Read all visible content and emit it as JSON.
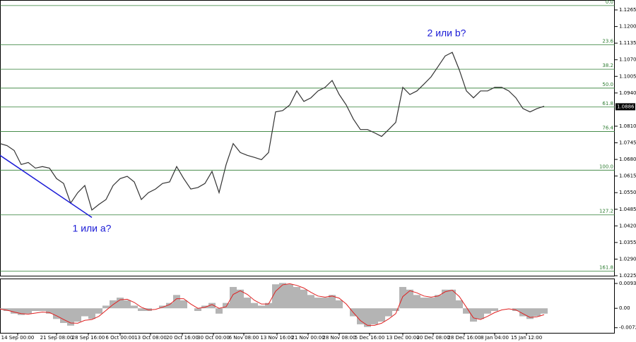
{
  "chart_data": [
    {
      "type": "line",
      "xlim": [
        0,
        87
      ],
      "ylim": [
        1.0225,
        1.1301
      ],
      "yticks": [
        {
          "value": 1.1265,
          "label": "1.1265"
        },
        {
          "value": 1.12,
          "label": "1.1200"
        },
        {
          "value": 1.1135,
          "label": "1.1135"
        },
        {
          "value": 1.107,
          "label": "1.1070"
        },
        {
          "value": 1.1005,
          "label": "1.1005"
        },
        {
          "value": 1.094,
          "label": "1.0940"
        },
        {
          "value": 1.081,
          "label": "1.0810"
        },
        {
          "value": 1.0745,
          "label": "1.0745"
        },
        {
          "value": 1.068,
          "label": "1.0680"
        },
        {
          "value": 1.0615,
          "label": "1.0615"
        },
        {
          "value": 1.055,
          "label": "1.0550"
        },
        {
          "value": 1.0485,
          "label": "1.0485"
        },
        {
          "value": 1.042,
          "label": "1.0420"
        },
        {
          "value": 1.0355,
          "label": "1.0355"
        },
        {
          "value": 1.029,
          "label": "1.0290"
        },
        {
          "value": 1.0225,
          "label": "1.0225"
        }
      ],
      "last_price": {
        "value": 1.0886,
        "label": "1.0886"
      },
      "series": [
        {
          "color": "#333333",
          "values": [
            1.0742,
            1.0734,
            1.0715,
            1.066,
            1.0668,
            1.0646,
            1.0652,
            1.0646,
            1.0605,
            1.0586,
            1.0509,
            1.055,
            1.0578,
            1.0482,
            1.0504,
            1.0523,
            1.0578,
            1.0605,
            1.0614,
            1.0592,
            1.0523,
            1.055,
            1.0564,
            1.0586,
            1.0592,
            1.0652,
            1.0605,
            1.0564,
            1.057,
            1.0586,
            1.0633,
            1.055,
            1.066,
            1.0742,
            1.0707,
            1.0696,
            1.0688,
            1.0679,
            1.0707,
            1.0866,
            1.0871,
            1.0893,
            1.0948,
            1.0907,
            1.0921,
            1.0948,
            1.0962,
            1.0989,
            1.0934,
            1.0893,
            1.0838,
            1.0797,
            1.0797,
            1.0784,
            1.077,
            1.0797,
            1.0825,
            1.0962,
            1.0934,
            1.0948,
            1.0975,
            1.1003,
            1.1044,
            1.1085,
            1.1099,
            1.103,
            1.0948,
            1.0921,
            1.0948,
            1.0948,
            1.0962,
            1.0962,
            1.0948,
            1.0921,
            1.0879,
            1.0866,
            1.0879,
            1.0888
          ]
        }
      ],
      "fib_color": "#2e7d32",
      "fib_levels": [
        {
          "value": 1.1282,
          "label": "0.0"
        },
        {
          "value": 1.1129,
          "label": "23.6"
        },
        {
          "value": 1.1033,
          "label": "38.2"
        },
        {
          "value": 1.0959,
          "label": "50.0"
        },
        {
          "value": 1.0885,
          "label": "61.8"
        },
        {
          "value": 1.0789,
          "label": "76.4"
        },
        {
          "value": 1.0638,
          "label": "100.0"
        },
        {
          "value": 1.0463,
          "label": "127.2"
        },
        {
          "value": 1.0243,
          "label": "161.8"
        }
      ],
      "wave_line": {
        "color": "#1a1ad6",
        "x": [
          0,
          13
        ],
        "values": [
          1.0696,
          1.0453
        ]
      },
      "annotations": [
        "2 или b?",
        "1 или a?"
      ]
    },
    {
      "type": "bar",
      "xlim": [
        0,
        87
      ],
      "ylim": [
        -0.0092,
        0.0109
      ],
      "yticks": [
        0.00932,
        {
          "value": 0,
          "label": "0.00"
        },
        -0.00728
      ],
      "xticks": [
        {
          "value": 2.5,
          "label": "14 Sep 00:00"
        },
        {
          "value": 8,
          "label": "21 Sep 08:00"
        },
        {
          "value": 12.5,
          "label": "28 Sep 16:00"
        },
        {
          "value": 17,
          "label": "6 Oct 00:00"
        },
        {
          "value": 21.3,
          "label": "13 Oct 08:00"
        },
        {
          "value": 25.8,
          "label": "20 Oct 16:00"
        },
        {
          "value": 30.2,
          "label": "30 Oct 00:00"
        },
        {
          "value": 34.5,
          "label": "6 Nov 08:00"
        },
        {
          "value": 39.2,
          "label": "13 Nov 16:00"
        },
        {
          "value": 43.6,
          "label": "21 Nov 00:00"
        },
        {
          "value": 48,
          "label": "28 Nov 08:00"
        },
        {
          "value": 52.3,
          "label": "5 Dec 16:00"
        },
        {
          "value": 57,
          "label": "13 Dec 00:00"
        },
        {
          "value": 61.3,
          "label": "20 Dec 08:00"
        },
        {
          "value": 65.7,
          "label": "28 Dec 16:00"
        },
        {
          "value": 70,
          "label": "8 Jan 04:00"
        },
        {
          "value": 74.5,
          "label": "15 Jan 12:00"
        }
      ],
      "series": [
        {
          "color": "#b4b4b4",
          "values": [
            -0.0005,
            -0.001,
            -0.002,
            -0.0025,
            -0.002,
            -0.001,
            -0.001,
            -0.002,
            -0.004,
            -0.0055,
            -0.0065,
            -0.005,
            -0.003,
            -0.004,
            -0.002,
            0.001,
            0.003,
            0.004,
            0.003,
            0.001,
            -0.001,
            -0.001,
            0,
            0.001,
            0.002,
            0.005,
            0.003,
            0,
            -0.001,
            0.001,
            0.002,
            -0.002,
            0.002,
            0.008,
            0.007,
            0.004,
            0.002,
            0.001,
            0.002,
            0.009,
            0.0095,
            0.009,
            0.008,
            0.007,
            0.005,
            0.004,
            0.004,
            0.005,
            0.003,
            0,
            -0.003,
            -0.006,
            -0.007,
            -0.006,
            -0.005,
            -0.003,
            -0.001,
            0.008,
            0.007,
            0.005,
            0.004,
            0.004,
            0.005,
            0.007,
            0.007,
            0.003,
            -0.002,
            -0.005,
            -0.004,
            -0.002,
            -0.001,
            0,
            0,
            -0.001,
            -0.003,
            -0.004,
            -0.003,
            -0.002
          ]
        },
        {
          "color": "#e02020",
          "values": [
            -0.0003,
            -0.0007,
            -0.0014,
            -0.002,
            -0.0022,
            -0.0018,
            -0.0014,
            -0.0016,
            -0.0028,
            -0.0042,
            -0.0055,
            -0.0056,
            -0.0045,
            -0.0042,
            -0.003,
            -0.0008,
            0.0014,
            0.0032,
            0.0034,
            0.0022,
            0.0004,
            -0.0006,
            -0.0004,
            0.0004,
            0.0014,
            0.0036,
            0.0036,
            0.0016,
            0,
            0.0004,
            0.0014,
            0,
            0.0006,
            0.0052,
            0.0066,
            0.0052,
            0.003,
            0.0016,
            0.0016,
            0.0064,
            0.0088,
            0.0092,
            0.0086,
            0.0076,
            0.006,
            0.0046,
            0.0042,
            0.0046,
            0.0038,
            0.0016,
            -0.0016,
            -0.0046,
            -0.0064,
            -0.0064,
            -0.0056,
            -0.004,
            -0.002,
            0.0044,
            0.0066,
            0.0058,
            0.0046,
            0.0042,
            0.0046,
            0.0062,
            0.0068,
            0.0044,
            0.0004,
            -0.0036,
            -0.0042,
            -0.003,
            -0.0016,
            -0.0006,
            -0.0002,
            -0.0006,
            -0.002,
            -0.0034,
            -0.0032,
            -0.0024
          ]
        }
      ]
    }
  ]
}
